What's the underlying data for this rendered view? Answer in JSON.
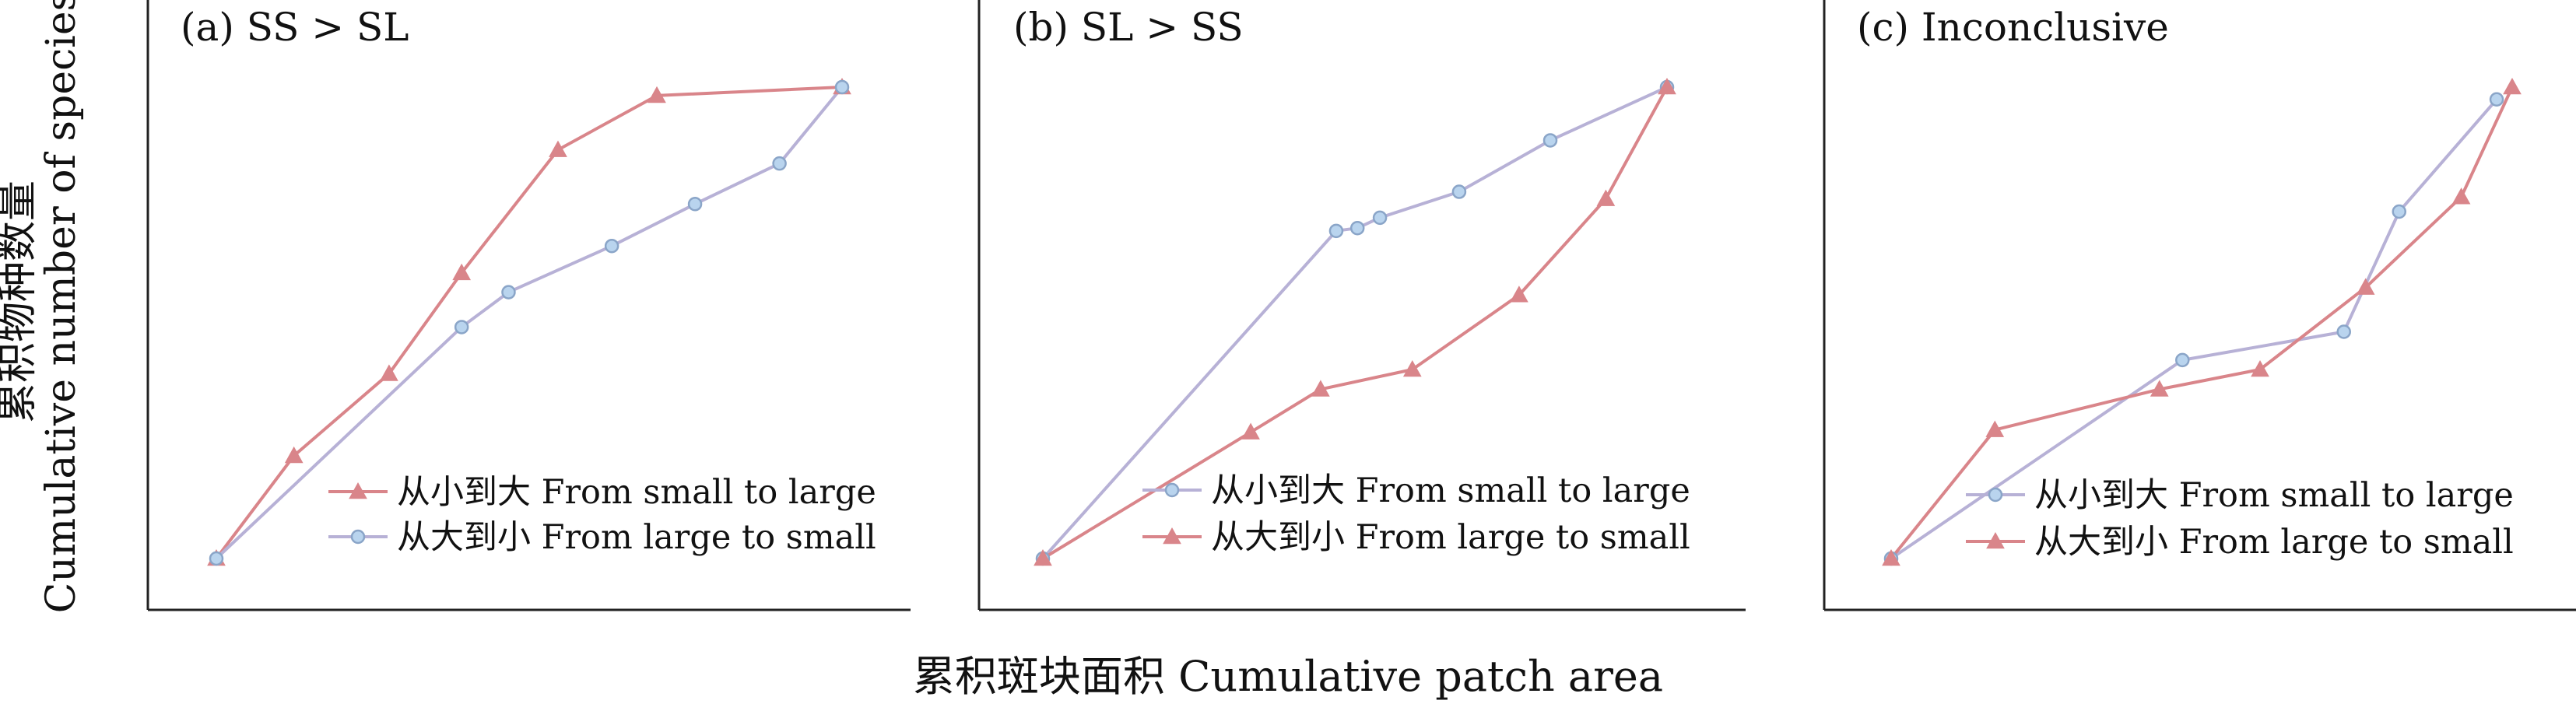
{
  "figure": {
    "ylabel_cn": "累积物种数量",
    "ylabel_en": "Cumulative number of species",
    "xlabel": "累积斑块面积 Cumulative patch area"
  },
  "colors": {
    "red": "#d9858a",
    "blue": "#b7b1d6",
    "marker_blue_fill": "#b9d4ee",
    "marker_blue_stroke": "#8aa5c8",
    "marker_red_fill": "#d9858a",
    "axis": "#222222"
  },
  "chart_data": [
    {
      "type": "line",
      "title": "(a) SS > SL",
      "xlim": [
        0,
        1
      ],
      "ylim": [
        0,
        1
      ],
      "legend_position": "bottom-right",
      "series": [
        {
          "name": "从小到大 From small to large",
          "color": "red",
          "marker": "triangle",
          "x": [
            0.0,
            0.124,
            0.276,
            0.392,
            0.546,
            0.704,
            1.0
          ],
          "y": [
            0.0,
            0.218,
            0.392,
            0.606,
            0.867,
            0.982,
            1.0
          ]
        },
        {
          "name": "从大到小 From large to small",
          "color": "blue",
          "marker": "circle",
          "x": [
            0.0,
            0.392,
            0.467,
            0.632,
            0.765,
            0.9,
            1.0
          ],
          "y": [
            0.0,
            0.491,
            0.565,
            0.663,
            0.752,
            0.838,
            1.0
          ]
        }
      ]
    },
    {
      "type": "line",
      "title": "(b) SL > SS",
      "xlim": [
        0,
        1
      ],
      "ylim": [
        0,
        1
      ],
      "legend_position": "bottom-right",
      "series": [
        {
          "name": "从小到大 From small to large",
          "color": "blue",
          "marker": "circle",
          "x": [
            0.0,
            0.47,
            0.504,
            0.54,
            0.667,
            0.813,
            1.0
          ],
          "y": [
            0.0,
            0.695,
            0.701,
            0.723,
            0.778,
            0.887,
            1.0
          ]
        },
        {
          "name": "从大到小 From large to small",
          "color": "red",
          "marker": "triangle",
          "x": [
            0.0,
            0.333,
            0.445,
            0.592,
            0.763,
            0.902,
            1.0
          ],
          "y": [
            0.0,
            0.268,
            0.359,
            0.401,
            0.559,
            0.763,
            1.0
          ]
        }
      ]
    },
    {
      "type": "line",
      "title": "(c) Inconclusive",
      "xlim": [
        0,
        1
      ],
      "ylim": [
        0,
        1
      ],
      "legend_position": "bottom-right",
      "series": [
        {
          "name": "从小到大 From small to large",
          "color": "blue",
          "marker": "circle",
          "x": [
            0.0,
            0.469,
            0.729,
            0.818,
            0.975
          ],
          "y": [
            0.0,
            0.421,
            0.481,
            0.736,
            0.974
          ]
        },
        {
          "name": "从大到小 From large to small",
          "color": "red",
          "marker": "triangle",
          "x": [
            0.0,
            0.167,
            0.432,
            0.594,
            0.764,
            0.918,
            1.0
          ],
          "y": [
            0.0,
            0.273,
            0.359,
            0.401,
            0.575,
            0.767,
            1.0
          ]
        }
      ]
    }
  ]
}
